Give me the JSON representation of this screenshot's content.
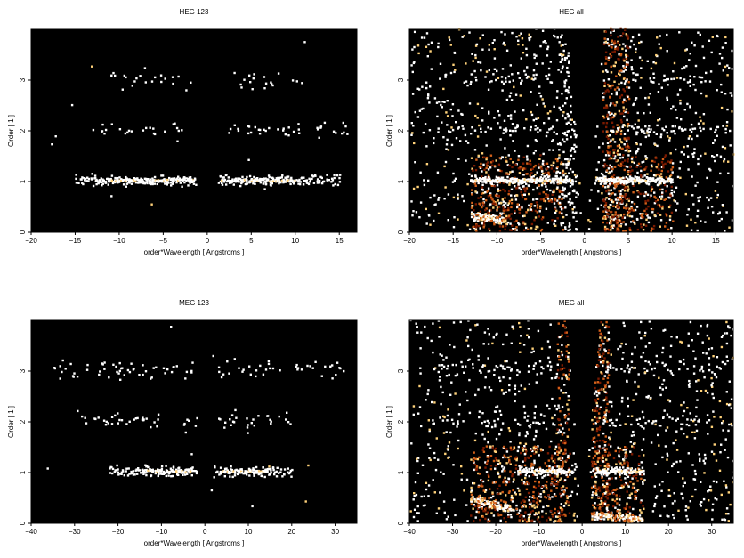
{
  "chart_data": [
    {
      "type": "heatmap",
      "title": "HEG 123",
      "xlabel": "order*Wavelength [ Angstroms ]",
      "ylabel": "Order [ 1 ]",
      "xlim": [
        -20,
        17
      ],
      "ylim": [
        0,
        4
      ],
      "xticks": [
        -20,
        -15,
        -10,
        -5,
        0,
        5,
        10,
        15
      ],
      "yticks": [
        0,
        1,
        2,
        3
      ],
      "colormap": [
        "#000000",
        "#7a1a00",
        "#d2601a",
        "#ffd27a",
        "#ffffff"
      ],
      "bands": [
        {
          "order": 1,
          "ranges": [
            [
              -15,
              -1.3
            ],
            [
              1.3,
              15
            ]
          ],
          "peaks": [
            [
              -13,
              -1.5
            ],
            [
              1.5,
              10
            ]
          ],
          "spread": 0.05,
          "density": 1.0
        },
        {
          "order": 2,
          "ranges": [
            [
              -13,
              -3
            ],
            [
              2.5,
              16
            ]
          ],
          "spread": 0.06,
          "density": 0.3
        },
        {
          "order": 3,
          "ranges": [
            [
              -11,
              -2
            ],
            [
              3,
              11
            ]
          ],
          "spread": 0.08,
          "density": 0.28
        }
      ],
      "background_density": 0.003,
      "background_zones": []
    },
    {
      "type": "heatmap",
      "title": "HEG all",
      "xlabel": "order*Wavelength [ Angstroms ]",
      "ylabel": "Order [ 1 ]",
      "xlim": [
        -20,
        17
      ],
      "ylim": [
        0,
        4
      ],
      "xticks": [
        -20,
        -15,
        -10,
        -5,
        0,
        5,
        10,
        15
      ],
      "yticks": [
        0,
        1,
        2,
        3
      ],
      "colormap": [
        "#000000",
        "#7a1a00",
        "#d2601a",
        "#ffd27a",
        "#ffffff"
      ],
      "bands": [
        {
          "order": 1,
          "ranges": [
            [
              -13,
              -1.3
            ],
            [
              1.3,
              10
            ]
          ],
          "peaks": [
            [
              -13,
              -1.5
            ],
            [
              1.5,
              10
            ]
          ],
          "spread": 0.04,
          "density": 1.0
        },
        {
          "order": 2,
          "ranges": [
            [
              -17,
              -3
            ],
            [
              3,
              16
            ]
          ],
          "spread": 0.06,
          "density": 0.35
        },
        {
          "order": 3,
          "ranges": [
            [
              -13,
              -3
            ],
            [
              4,
              14
            ]
          ],
          "spread": 0.08,
          "density": 0.3
        }
      ],
      "background_density": 0.18,
      "background_zones": [
        {
          "x": [
            -13,
            -2.5
          ],
          "y": [
            0,
            1.5
          ],
          "density": 0.55,
          "warm": true
        },
        {
          "x": [
            2,
            10
          ],
          "y": [
            0,
            1.5
          ],
          "density": 0.45,
          "warm": true
        },
        {
          "x": [
            2,
            5
          ],
          "y": [
            0,
            4
          ],
          "density": 0.6,
          "warm": true
        },
        {
          "x": [
            -3,
            -1
          ],
          "y": [
            0,
            4
          ],
          "density": 0.4,
          "warm": false
        }
      ],
      "gap": {
        "apex": 0,
        "half_width_at_top": 2.2
      },
      "streaks": [
        {
          "x": [
            -13,
            -9
          ],
          "y": [
            0.2,
            0.3
          ]
        }
      ]
    },
    {
      "type": "heatmap",
      "title": "MEG 123",
      "xlabel": "order*Wavelength [ Angstroms ]",
      "ylabel": "Order [ 1 ]",
      "xlim": [
        -40,
        35
      ],
      "ylim": [
        0,
        4
      ],
      "xticks": [
        -40,
        -30,
        -20,
        -10,
        0,
        10,
        20,
        30
      ],
      "yticks": [
        0,
        1,
        2,
        3
      ],
      "colormap": [
        "#000000",
        "#7a1a00",
        "#d2601a",
        "#ffd27a",
        "#ffffff"
      ],
      "bands": [
        {
          "order": 1,
          "ranges": [
            [
              -22,
              -2
            ],
            [
              2,
              20
            ]
          ],
          "peaks": [
            [
              -15,
              -3
            ],
            [
              3,
              15
            ]
          ],
          "spread": 0.05,
          "density": 1.0
        },
        {
          "order": 2,
          "ranges": [
            [
              -30,
              -8
            ],
            [
              -5,
              -2
            ],
            [
              2,
              20
            ]
          ],
          "spread": 0.07,
          "density": 0.28
        },
        {
          "order": 3,
          "ranges": [
            [
              -35,
              -3
            ],
            [
              2,
              32
            ]
          ],
          "spread": 0.09,
          "density": 0.35
        }
      ],
      "background_density": 0.003,
      "background_zones": []
    },
    {
      "type": "heatmap",
      "title": "MEG all",
      "xlabel": "order*Wavelength [ Angstroms ]",
      "ylabel": "Order [ 1 ]",
      "xlim": [
        -40,
        35
      ],
      "ylim": [
        0,
        4
      ],
      "xticks": [
        -40,
        -30,
        -20,
        -10,
        0,
        10,
        20,
        30
      ],
      "yticks": [
        0,
        1,
        2,
        3
      ],
      "colormap": [
        "#000000",
        "#7a1a00",
        "#d2601a",
        "#ffd27a",
        "#ffffff"
      ],
      "bands": [
        {
          "order": 1,
          "ranges": [
            [
              -15,
              -2
            ],
            [
              2,
              14
            ]
          ],
          "peaks": [
            [
              -15,
              -3
            ],
            [
              3,
              14
            ]
          ],
          "spread": 0.04,
          "density": 1.0
        },
        {
          "order": 2,
          "ranges": [
            [
              -35,
              -6
            ],
            [
              4,
              30
            ]
          ],
          "spread": 0.07,
          "density": 0.3
        },
        {
          "order": 3,
          "ranges": [
            [
              -35,
              -4
            ],
            [
              4,
              32
            ]
          ],
          "spread": 0.08,
          "density": 0.32
        }
      ],
      "background_density": 0.16,
      "background_zones": [
        {
          "x": [
            -26,
            -4
          ],
          "y": [
            0,
            1.5
          ],
          "density": 0.5,
          "warm": true
        },
        {
          "x": [
            2,
            14
          ],
          "y": [
            0,
            1.5
          ],
          "density": 0.45,
          "warm": true
        },
        {
          "x": [
            2,
            6
          ],
          "y": [
            0,
            4
          ],
          "density": 0.6,
          "warm": true
        },
        {
          "x": [
            -6,
            -3
          ],
          "y": [
            0,
            4
          ],
          "density": 0.45,
          "warm": true
        }
      ],
      "gap": {
        "apex": 0,
        "half_width_at_top": 4.0
      },
      "streaks": [
        {
          "x": [
            -26,
            -16
          ],
          "y": [
            0.25,
            0.45
          ]
        },
        {
          "x": [
            2,
            14
          ],
          "y": [
            0.05,
            0.15
          ]
        }
      ]
    }
  ]
}
